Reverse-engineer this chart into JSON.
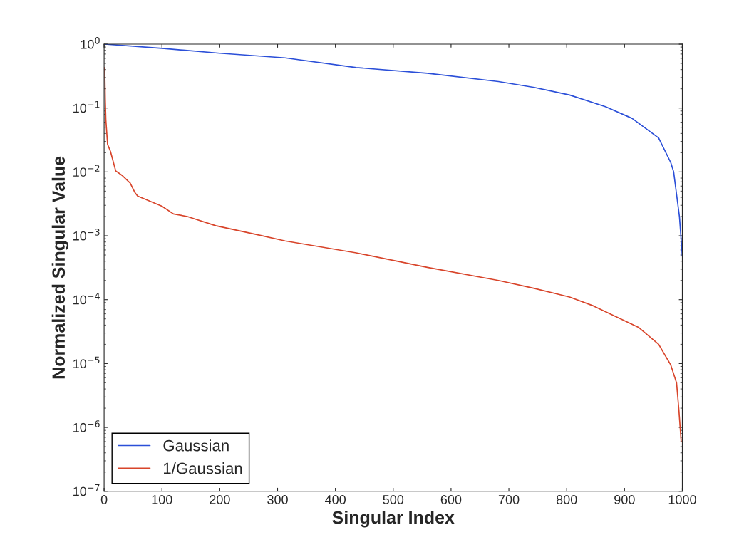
{
  "chart_data": {
    "type": "line",
    "xlabel": "Singular Index",
    "ylabel": "Normalized Singular Value",
    "log": "y",
    "xlim": [
      0,
      1000
    ],
    "xticks": [
      0,
      100,
      200,
      300,
      400,
      500,
      600,
      700,
      800,
      900,
      1000
    ],
    "ylim": [
      1e-07,
      1
    ],
    "yticks": [
      {
        "value": 1e-07,
        "label": "10$^{−7}$"
      },
      {
        "value": 1e-06,
        "label": "10$^{−6}$"
      },
      {
        "value": 1e-05,
        "label": "10$^{−5}$"
      },
      {
        "value": 0.0001,
        "label": "10$^{−4}$"
      },
      {
        "value": 0.001,
        "label": "10$^{−3}$"
      },
      {
        "value": 0.01,
        "label": "10$^{−2}$"
      },
      {
        "value": 0.1,
        "label": "10$^{−1}$"
      },
      {
        "value": 1,
        "label": "10$^{0}$"
      }
    ],
    "grid": false,
    "legend": "bottom left",
    "marker": "none",
    "line_style": "solid",
    "series": [
      {
        "name": "Gaussian",
        "color": "#2b4fd8",
        "x": [
          1,
          100,
          200,
          313,
          436,
          559,
          682,
          744,
          805,
          867,
          913,
          959,
          980,
          985,
          995,
          1000
        ],
        "values": [
          1.0,
          0.86,
          0.72,
          0.61,
          0.43,
          0.35,
          0.26,
          0.21,
          0.16,
          0.105,
          0.069,
          0.034,
          0.014,
          0.01,
          0.002,
          0.00048
        ]
      },
      {
        "name": "1/Gaussian",
        "color": "#d8442a",
        "x": [
          1,
          2,
          3,
          6,
          11,
          20,
          32,
          45,
          53,
          58,
          100,
          120,
          144,
          193,
          267,
          313,
          436,
          559,
          682,
          744,
          805,
          846,
          924,
          959,
          980,
          990,
          994,
          998
        ],
        "values": [
          0.43,
          0.135,
          0.066,
          0.027,
          0.021,
          0.0104,
          0.0087,
          0.0067,
          0.0048,
          0.0042,
          0.0029,
          0.0022,
          0.002,
          0.00144,
          0.00103,
          0.00083,
          0.00054,
          0.00032,
          0.0002,
          0.00015,
          0.00011,
          8e-05,
          3.7e-05,
          2e-05,
          9.5e-06,
          5e-06,
          1.9e-06,
          6e-07
        ]
      }
    ]
  }
}
